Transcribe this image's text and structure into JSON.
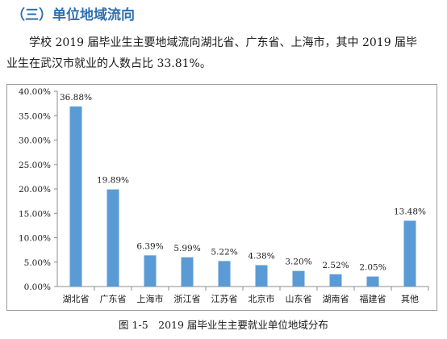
{
  "section": {
    "heading": "（三）单位地域流向"
  },
  "paragraph": {
    "line1": "学校 2019 届毕业生主要地域流向湖北省、广东省、上海市，其中 2019 届毕",
    "line2": "业生在武汉市就业的人数占比 33.81%。"
  },
  "chart_data": {
    "type": "bar",
    "title": "",
    "xlabel": "",
    "ylabel": "",
    "categories": [
      "湖北省",
      "广东省",
      "上海市",
      "浙江省",
      "江苏省",
      "北京市",
      "山东省",
      "湖南省",
      "福建省",
      "其他"
    ],
    "values": [
      36.88,
      19.89,
      6.39,
      5.99,
      5.22,
      4.38,
      3.2,
      2.52,
      2.05,
      13.48
    ],
    "value_labels": [
      "36.88%",
      "19.89%",
      "6.39%",
      "5.99%",
      "5.22%",
      "4.38%",
      "3.20%",
      "2.52%",
      "2.05%",
      "13.48%"
    ],
    "y_ticks": [
      0,
      5,
      10,
      15,
      20,
      25,
      30,
      35,
      40
    ],
    "y_tick_labels": [
      "0.00%",
      "5.00%",
      "10.00%",
      "15.00%",
      "20.00%",
      "25.00%",
      "30.00%",
      "35.00%",
      "40.00%"
    ],
    "ylim": [
      0,
      40
    ],
    "grid": false,
    "legend": "none",
    "bar_color": "#5b9bd5"
  },
  "caption": "图 1-5　2019 届毕业生主要就业单位地域分布"
}
